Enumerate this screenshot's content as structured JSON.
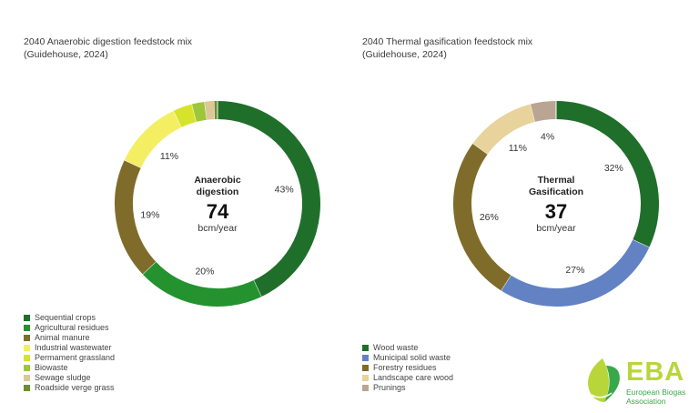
{
  "charts": [
    {
      "title_line1": "2040 Anaerobic digestion feedstock mix",
      "title_line2": "(Guidehouse, 2024)",
      "center_title_line1": "Anaerobic",
      "center_title_line2": "digestion",
      "center_value": "74",
      "center_unit": "bcm/year"
    },
    {
      "title_line1": "2040 Thermal gasification feedstock mix",
      "title_line2": "(Guidehouse, 2024)",
      "center_title_line1": "Thermal",
      "center_title_line2": "Gasification",
      "center_value": "37",
      "center_unit": "bcm/year"
    }
  ],
  "chart_data": [
    {
      "type": "pie",
      "variant": "donut",
      "title": "2040 Anaerobic digestion feedstock mix (Guidehouse, 2024)",
      "categories": [
        "Sequential crops",
        "Agricultural residues",
        "Animal manure",
        "Industrial wastewater",
        "Permament grassland",
        "Biowaste",
        "Sewage sludge",
        "Roadside verge grass"
      ],
      "values": [
        43,
        20,
        19,
        11,
        3,
        2,
        1.5,
        0.5
      ],
      "labels": [
        "43%",
        "20%",
        "19%",
        "11%",
        "",
        "",
        "",
        ""
      ],
      "colors": [
        "#1f6f2b",
        "#23922f",
        "#806c2a",
        "#f4ee63",
        "#d7e32a",
        "#9dc73a",
        "#dcc796",
        "#6b8f2d"
      ],
      "legend": "bottom-left",
      "total_label": "74 bcm/year"
    },
    {
      "type": "pie",
      "variant": "donut",
      "title": "2040 Thermal gasification feedstock mix (Guidehouse, 2024)",
      "categories": [
        "Wood waste",
        "Municipal solid waste",
        "Forestry residues",
        "Landscape care wood",
        "Prunings"
      ],
      "values": [
        32,
        27,
        26,
        11,
        4
      ],
      "labels": [
        "32%",
        "27%",
        "26%",
        "11%",
        "4%"
      ],
      "colors": [
        "#1f6f2b",
        "#6282c3",
        "#806c2a",
        "#e7d39b",
        "#b9a592"
      ],
      "legend": "bottom-left",
      "total_label": "37 bcm/year"
    }
  ],
  "logo": {
    "text": "EBA",
    "sub_line1": "European Biogas",
    "sub_line2": "Association",
    "color_main": "#39a84a",
    "color_light": "#b8d63a"
  }
}
